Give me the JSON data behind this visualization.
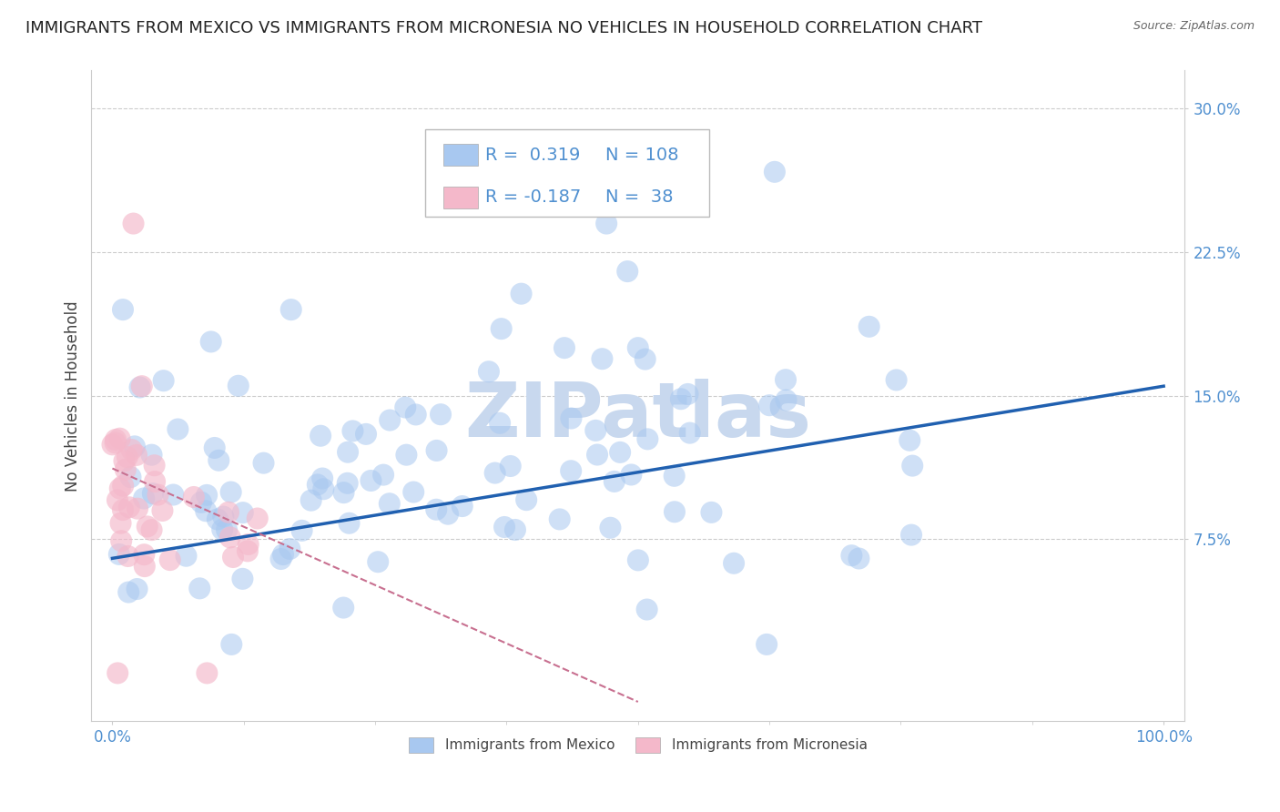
{
  "title": "IMMIGRANTS FROM MEXICO VS IMMIGRANTS FROM MICRONESIA NO VEHICLES IN HOUSEHOLD CORRELATION CHART",
  "source": "Source: ZipAtlas.com",
  "ylabel": "No Vehicles in Household",
  "xlim": [
    -0.02,
    1.02
  ],
  "ylim": [
    -0.02,
    0.32
  ],
  "xtick_positions": [
    0.0,
    1.0
  ],
  "xtick_labels": [
    "0.0%",
    "100.0%"
  ],
  "ytick_vals": [
    0.075,
    0.15,
    0.225,
    0.3
  ],
  "ytick_labels": [
    "7.5%",
    "15.0%",
    "22.5%",
    "30.0%"
  ],
  "watermark": "ZIPatlas",
  "mexico_color": "#a8c8f0",
  "micronesia_color": "#f4b8ca",
  "mexico_line_color": "#2060b0",
  "micronesia_line_color": "#c87090",
  "background_color": "#ffffff",
  "grid_color": "#cccccc",
  "title_fontsize": 13,
  "axis_fontsize": 12,
  "legend_fontsize": 14,
  "tick_label_color": "#5090d0",
  "watermark_color": "#c8d8ee",
  "watermark_fontsize": 60,
  "scatter_size": 300,
  "scatter_alpha": 0.55,
  "legend_R1": "0.319",
  "legend_N1": "108",
  "legend_R2": "-0.187",
  "legend_N2": "38"
}
